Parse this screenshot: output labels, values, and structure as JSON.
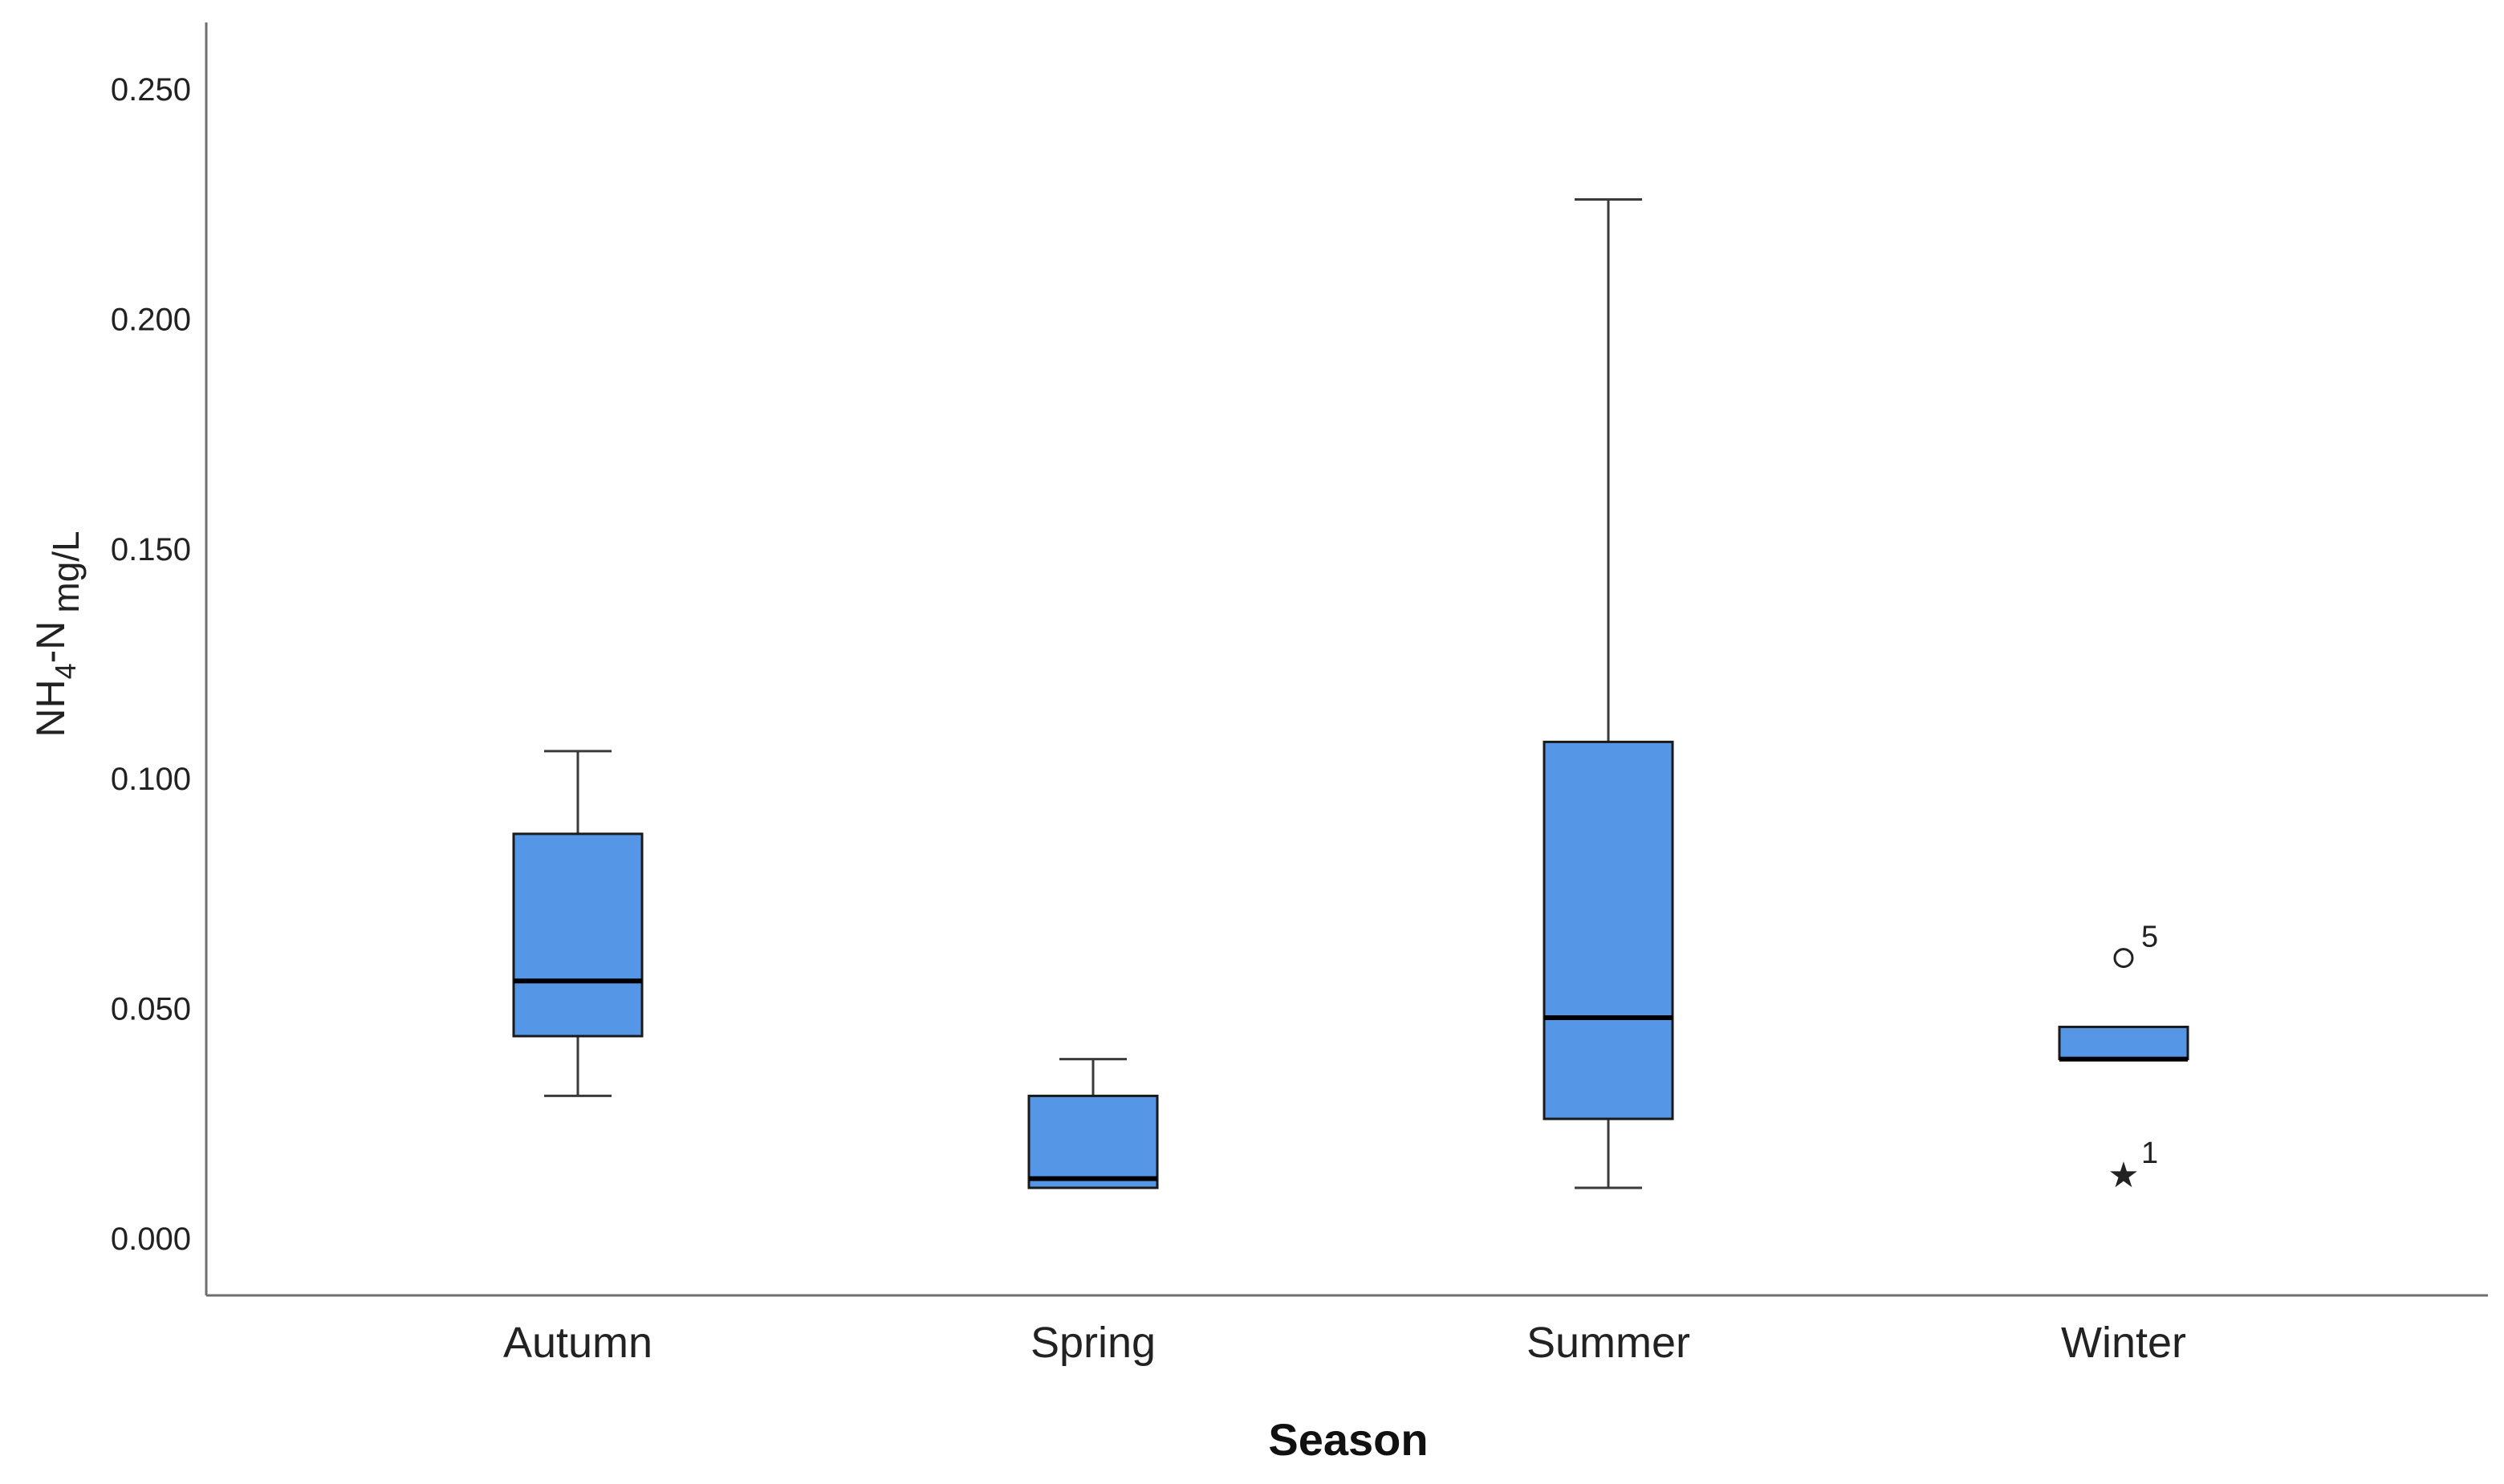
{
  "chart_data": {
    "type": "boxplot",
    "xlabel": "Season",
    "ylabel": {
      "main_a": "NH",
      "sub_a": "4",
      "main_b": "-N",
      "sub_b": "mg/L"
    },
    "ylim": [
      -0.0125,
      0.2625
    ],
    "yticks": [
      0.0,
      0.05,
      0.1,
      0.15,
      0.2,
      0.25
    ],
    "ytick_labels": [
      "0.000",
      "0.050",
      "0.100",
      "0.150",
      "0.200",
      "0.250"
    ],
    "grid": false,
    "categories": [
      "Autumn",
      "Spring",
      "Summer",
      "Winter"
    ],
    "boxes": [
      {
        "category": "Autumn",
        "whisker_low": 0.031,
        "q1": 0.044,
        "median": 0.056,
        "q3": 0.088,
        "whisker_high": 0.106
      },
      {
        "category": "Spring",
        "whisker_low": 0.011,
        "q1": 0.011,
        "median": 0.013,
        "q3": 0.031,
        "whisker_high": 0.039
      },
      {
        "category": "Summer",
        "whisker_low": 0.011,
        "q1": 0.026,
        "median": 0.048,
        "q3": 0.108,
        "whisker_high": 0.226
      },
      {
        "category": "Winter",
        "whisker_low": 0.039,
        "q1": 0.039,
        "median": 0.039,
        "q3": 0.046,
        "whisker_high": 0.046
      }
    ],
    "outliers": [
      {
        "category": "Winter",
        "value": 0.061,
        "marker": "circle",
        "label": "5"
      },
      {
        "category": "Winter",
        "value": 0.014,
        "marker": "star",
        "label": "1"
      }
    ],
    "colors": {
      "box_fill": "#5596e6",
      "box_stroke": "#1a1a1a",
      "median": "#000000",
      "axis": "#6e6e6e",
      "whisker": "#3a3a3a",
      "text": "#222222"
    }
  }
}
